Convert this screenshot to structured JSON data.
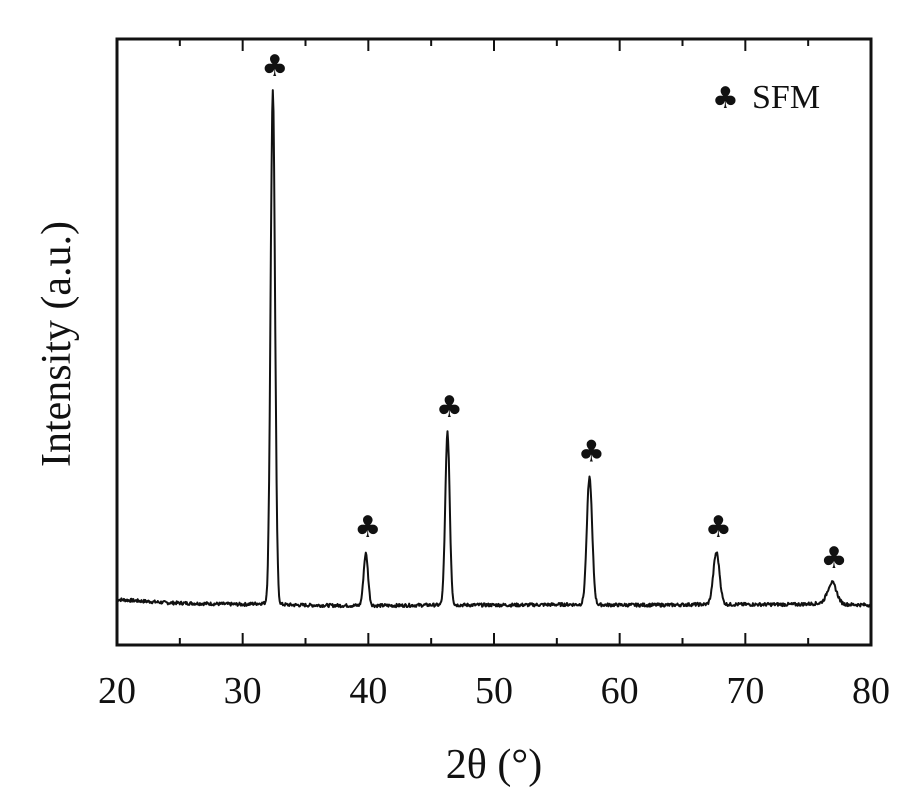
{
  "chart_data": {
    "type": "line",
    "title": "",
    "xlabel": "2θ (°)",
    "ylabel": "Intensity (a.u.)",
    "xlim": [
      20,
      80
    ],
    "ylim": [
      0,
      100
    ],
    "x_ticks": [
      "20",
      "30",
      "40",
      "50",
      "60",
      "70",
      "80"
    ],
    "x_tick_values": [
      20,
      30,
      40,
      50,
      60,
      70,
      80
    ],
    "grid": false,
    "legend": {
      "position": "top-right",
      "marker": "♣",
      "label": "SFM"
    },
    "baseline": [
      [
        20,
        9.2
      ],
      [
        22,
        8.9
      ],
      [
        24,
        8.6
      ],
      [
        26,
        8.5
      ],
      [
        28,
        8.4
      ],
      [
        30,
        8.3
      ],
      [
        31.5,
        8.5
      ],
      [
        34,
        8.2
      ],
      [
        38,
        8.1
      ],
      [
        42,
        8.1
      ],
      [
        45,
        8.2
      ],
      [
        48,
        8.2
      ],
      [
        52,
        8.2
      ],
      [
        56,
        8.3
      ],
      [
        60,
        8.2
      ],
      [
        64,
        8.2
      ],
      [
        66,
        8.3
      ],
      [
        70,
        8.3
      ],
      [
        74,
        8.3
      ],
      [
        76,
        8.5
      ],
      [
        78,
        8.3
      ],
      [
        80,
        8.2
      ]
    ],
    "series": [
      {
        "name": "SFM",
        "peaks": [
          {
            "x": 32.4,
            "intensity": 100,
            "width": 0.25
          },
          {
            "x": 39.8,
            "intensity": 17.5,
            "width": 0.25
          },
          {
            "x": 46.3,
            "intensity": 39,
            "width": 0.25
          },
          {
            "x": 57.6,
            "intensity": 31,
            "width": 0.3
          },
          {
            "x": 67.7,
            "intensity": 17.5,
            "width": 0.35
          },
          {
            "x": 76.9,
            "intensity": 12,
            "width": 0.5
          }
        ]
      }
    ],
    "peak_markers": [
      32.4,
      39.8,
      46.3,
      57.6,
      67.7,
      76.9
    ]
  }
}
